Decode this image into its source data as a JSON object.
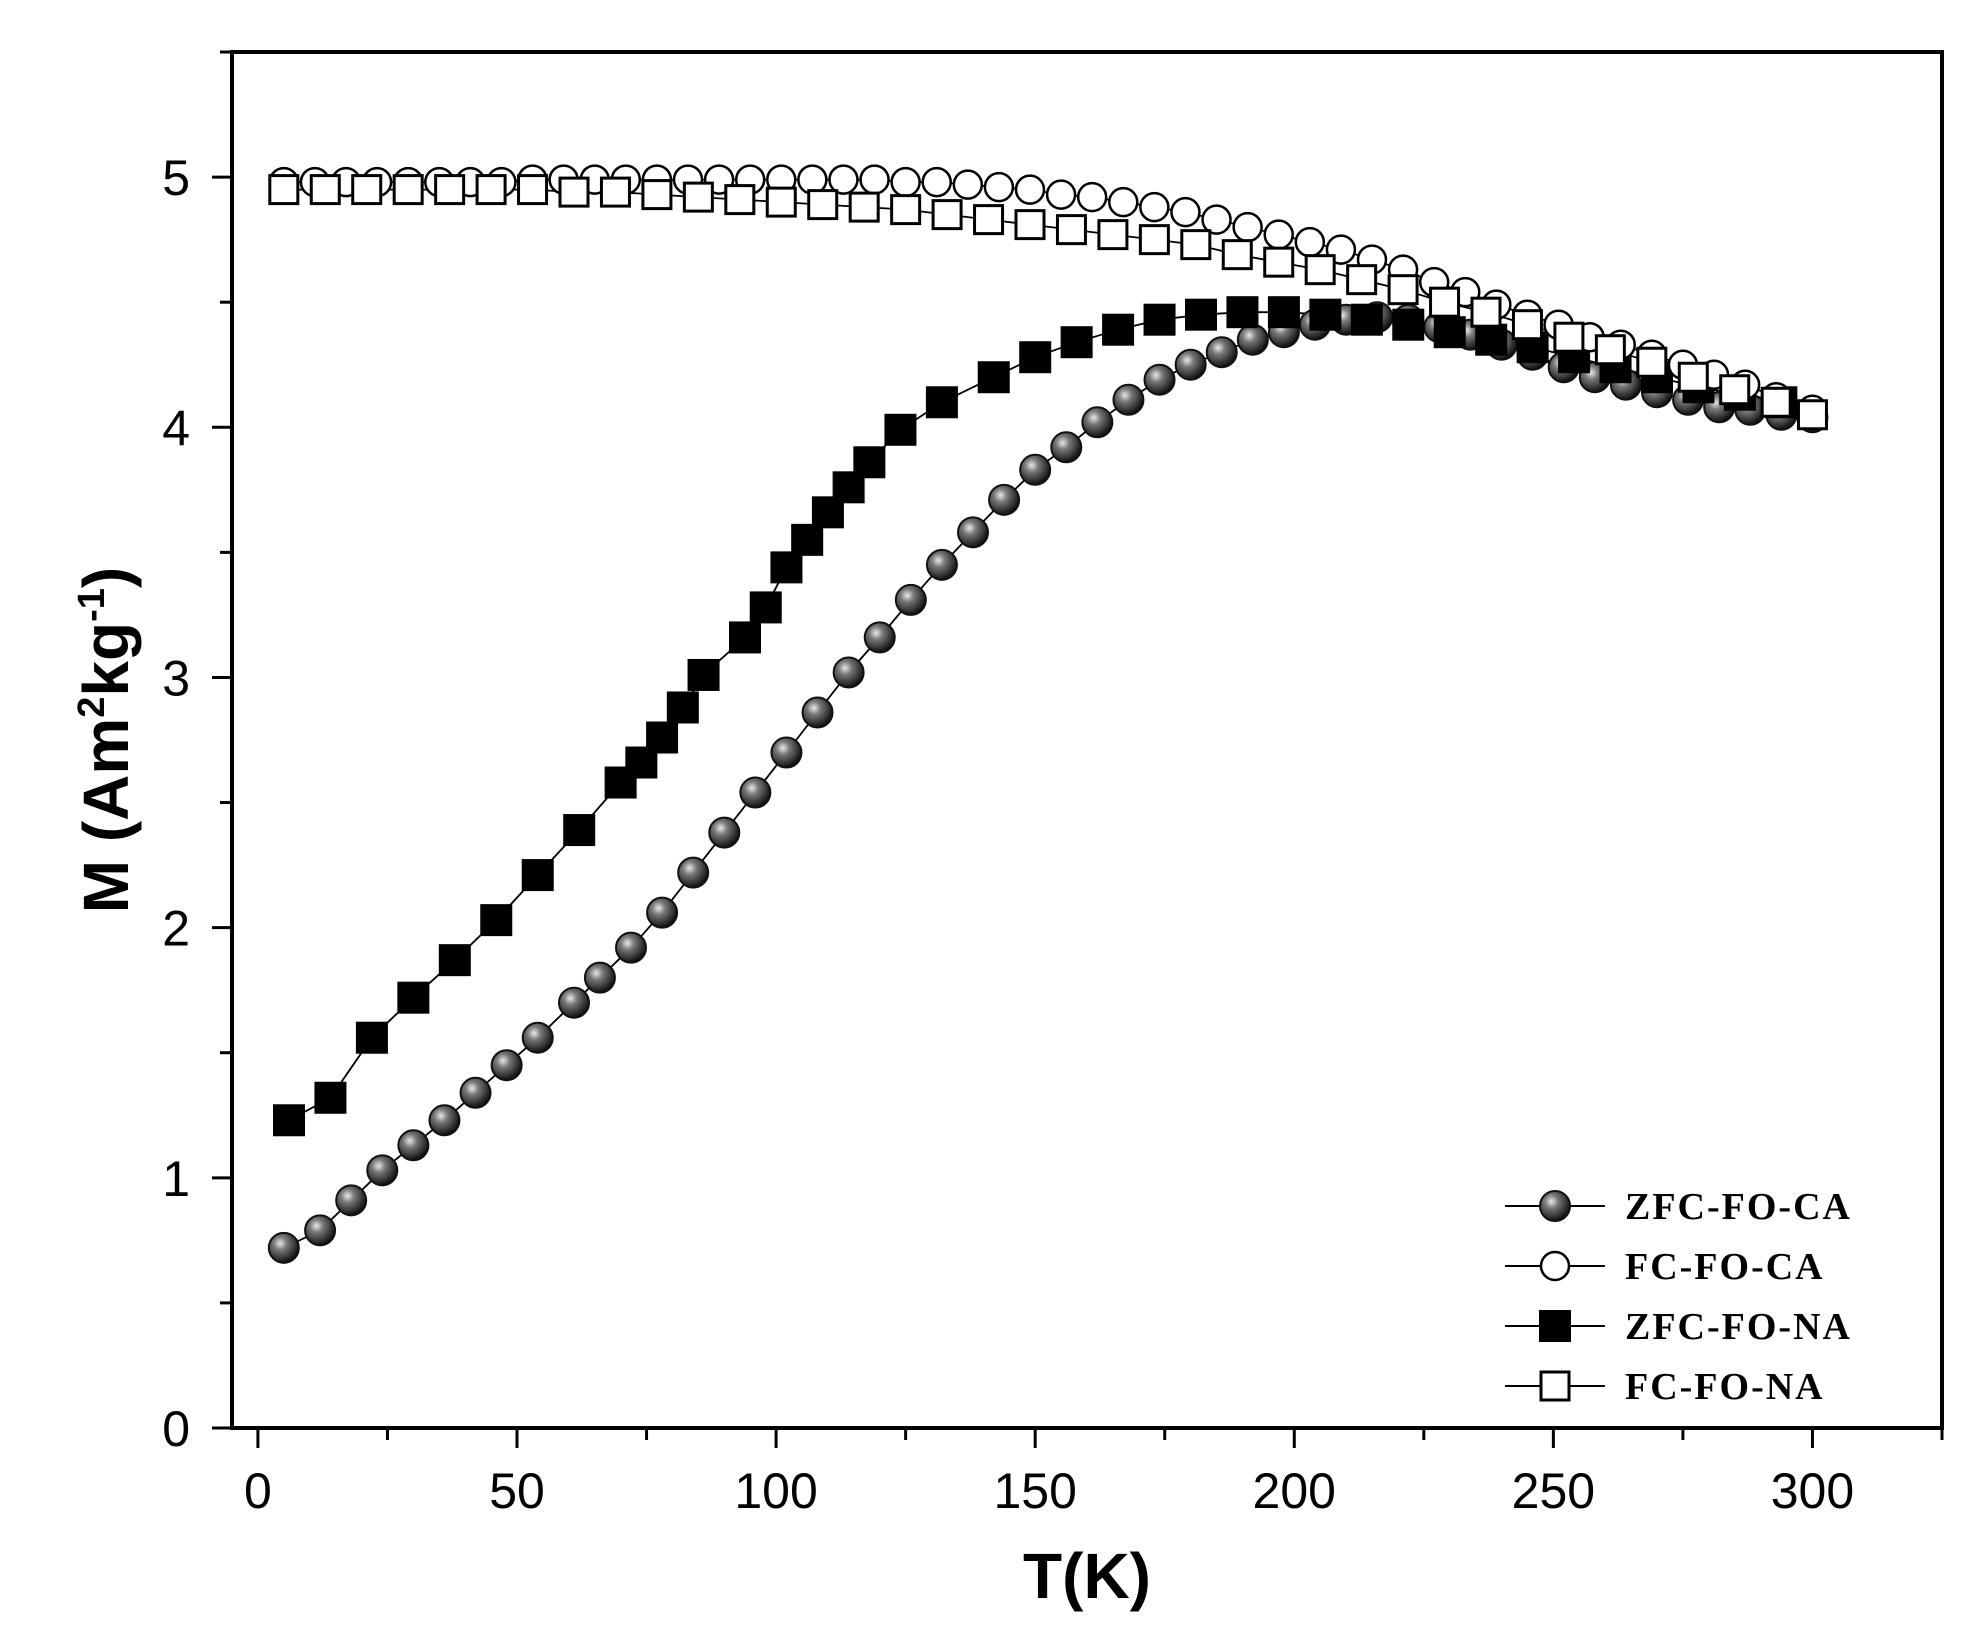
{
  "chart_data": {
    "type": "scatter",
    "title": "",
    "xlabel": "T(K)",
    "ylabel": "M (Am²kg⁻¹)",
    "ylabel_parts": {
      "base": "M (Am",
      "sup1": "2",
      "mid": "kg",
      "sup2": "-1",
      "end": ")"
    },
    "xlim": [
      -5,
      325
    ],
    "ylim": [
      0,
      5.5
    ],
    "xticks": [
      0,
      50,
      100,
      150,
      200,
      250,
      300
    ],
    "yticks": [
      0,
      1,
      2,
      3,
      4,
      5
    ],
    "x_tick_labels": [
      "0",
      "50",
      "100",
      "150",
      "200",
      "250",
      "300"
    ],
    "y_tick_labels": [
      "0",
      "1",
      "2",
      "3",
      "4",
      "5"
    ],
    "grid": false,
    "legend_position": "bottom-right",
    "series": [
      {
        "name": "ZFC-FO-CA",
        "marker": "sphere",
        "color": "#222222",
        "x": [
          5,
          12,
          18,
          24,
          30,
          36,
          42,
          48,
          54,
          61,
          66,
          72,
          78,
          84,
          90,
          96,
          102,
          108,
          114,
          120,
          126,
          132,
          138,
          144,
          150,
          156,
          162,
          168,
          174,
          180,
          186,
          192,
          198,
          204,
          210,
          216,
          222,
          228,
          234,
          240,
          246,
          252,
          258,
          264,
          270,
          276,
          282,
          288,
          294,
          300
        ],
        "values": [
          0.72,
          0.79,
          0.91,
          1.03,
          1.13,
          1.23,
          1.34,
          1.45,
          1.56,
          1.7,
          1.8,
          1.92,
          2.06,
          2.22,
          2.38,
          2.54,
          2.7,
          2.86,
          3.02,
          3.16,
          3.31,
          3.45,
          3.58,
          3.71,
          3.83,
          3.92,
          4.02,
          4.11,
          4.19,
          4.25,
          4.3,
          4.35,
          4.38,
          4.41,
          4.43,
          4.44,
          4.43,
          4.4,
          4.37,
          4.33,
          4.29,
          4.24,
          4.2,
          4.17,
          4.14,
          4.11,
          4.08,
          4.07,
          4.05,
          4.04
        ]
      },
      {
        "name": "FC-FO-CA",
        "marker": "open-circle",
        "color": "#000000",
        "x": [
          5,
          11,
          17,
          23,
          29,
          35,
          41,
          47,
          53,
          59,
          65,
          71,
          77,
          83,
          89,
          95,
          101,
          107,
          113,
          119,
          125,
          131,
          137,
          143,
          149,
          155,
          161,
          167,
          173,
          179,
          185,
          191,
          197,
          203,
          209,
          215,
          221,
          227,
          233,
          239,
          245,
          251,
          257,
          263,
          269,
          275,
          281,
          287,
          293,
          300
        ],
        "values": [
          4.98,
          4.98,
          4.98,
          4.98,
          4.98,
          4.98,
          4.98,
          4.98,
          4.99,
          4.99,
          4.99,
          4.99,
          4.99,
          4.99,
          4.99,
          4.99,
          4.99,
          4.99,
          4.99,
          4.99,
          4.98,
          4.98,
          4.97,
          4.96,
          4.95,
          4.93,
          4.92,
          4.9,
          4.88,
          4.86,
          4.83,
          4.8,
          4.77,
          4.74,
          4.71,
          4.67,
          4.63,
          4.58,
          4.54,
          4.49,
          4.45,
          4.41,
          4.36,
          4.33,
          4.29,
          4.25,
          4.21,
          4.17,
          4.12,
          4.07
        ]
      },
      {
        "name": "ZFC-FO-NA",
        "marker": "filled-square",
        "color": "#000000",
        "x": [
          6,
          14,
          22,
          30,
          38,
          46,
          54,
          62,
          70,
          74,
          78,
          82,
          86,
          94,
          98,
          102,
          106,
          110,
          114,
          118,
          124,
          132,
          142,
          150,
          158,
          166,
          174,
          182,
          190,
          198,
          206,
          214,
          222,
          230,
          238,
          246,
          254,
          262,
          270,
          278,
          286,
          294
        ],
        "values": [
          1.23,
          1.32,
          1.56,
          1.72,
          1.87,
          2.03,
          2.21,
          2.39,
          2.58,
          2.66,
          2.76,
          2.88,
          3.01,
          3.16,
          3.28,
          3.44,
          3.55,
          3.66,
          3.76,
          3.86,
          3.99,
          4.1,
          4.2,
          4.28,
          4.34,
          4.39,
          4.43,
          4.45,
          4.46,
          4.46,
          4.45,
          4.43,
          4.41,
          4.38,
          4.35,
          4.32,
          4.28,
          4.24,
          4.2,
          4.16,
          4.13,
          4.1
        ]
      },
      {
        "name": "FC-FO-NA",
        "marker": "open-square",
        "color": "#000000",
        "x": [
          5,
          13,
          21,
          29,
          37,
          45,
          53,
          61,
          69,
          77,
          85,
          93,
          101,
          109,
          117,
          125,
          133,
          141,
          149,
          157,
          165,
          173,
          181,
          189,
          197,
          205,
          213,
          221,
          229,
          237,
          245,
          253,
          261,
          269,
          277,
          285,
          293,
          300
        ],
        "values": [
          4.95,
          4.95,
          4.95,
          4.95,
          4.95,
          4.95,
          4.95,
          4.94,
          4.94,
          4.93,
          4.92,
          4.91,
          4.9,
          4.89,
          4.88,
          4.87,
          4.85,
          4.83,
          4.81,
          4.79,
          4.77,
          4.75,
          4.73,
          4.69,
          4.66,
          4.63,
          4.59,
          4.55,
          4.5,
          4.46,
          4.41,
          4.36,
          4.31,
          4.26,
          4.2,
          4.15,
          4.1,
          4.05
        ]
      }
    ]
  }
}
